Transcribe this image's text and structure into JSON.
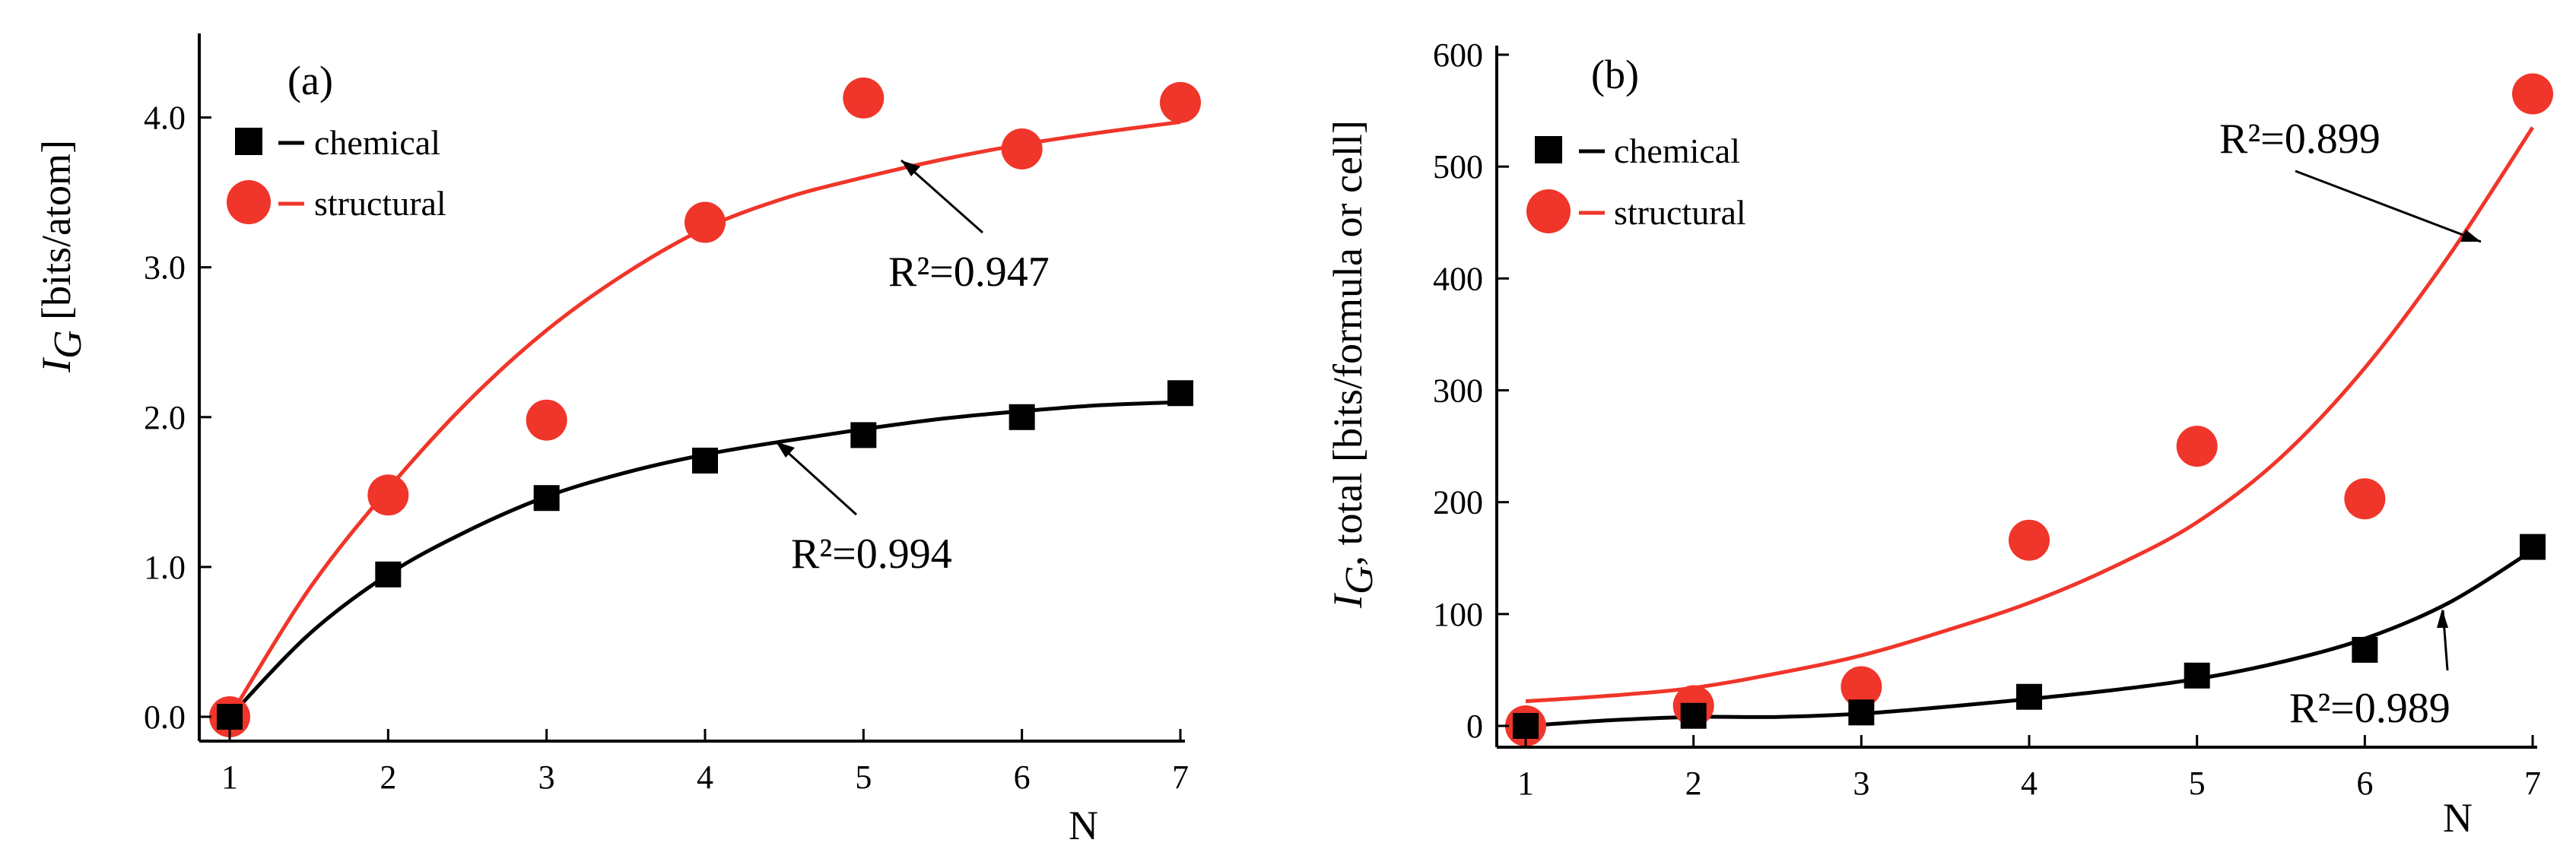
{
  "chart_data": [
    {
      "panel": "(a)",
      "type": "scatter",
      "xlabel": "N",
      "ylabel": {
        "italic": "I",
        "sub": "G",
        "rest": " [bits/atom]"
      },
      "xlim": [
        1,
        7
      ],
      "ylim": [
        0,
        4.5
      ],
      "xticks": [
        1,
        2,
        3,
        4,
        5,
        6,
        7
      ],
      "yticks": [
        0.0,
        1.0,
        2.0,
        3.0,
        4.0
      ],
      "ytick_labels": [
        "0.0",
        "1.0",
        "2.0",
        "3.0",
        "4.0"
      ],
      "legend_position": "top-left",
      "series": [
        {
          "name": "chemical",
          "marker": "square",
          "color": "#000000",
          "x": [
            1,
            2,
            3,
            4,
            5,
            6,
            7
          ],
          "y": [
            0.0,
            0.95,
            1.46,
            1.71,
            1.88,
            2.0,
            2.16
          ],
          "fit": [
            [
              1,
              0.0
            ],
            [
              1.5,
              0.55
            ],
            [
              2,
              0.95
            ],
            [
              2.5,
              1.24
            ],
            [
              3,
              1.47
            ],
            [
              3.5,
              1.63
            ],
            [
              4,
              1.75
            ],
            [
              4.5,
              1.84
            ],
            [
              5,
              1.92
            ],
            [
              5.5,
              1.99
            ],
            [
              6,
              2.04
            ],
            [
              6.5,
              2.08
            ],
            [
              7,
              2.1
            ]
          ],
          "r2_label": "R²=0.994"
        },
        {
          "name": "structural",
          "marker": "circle",
          "color": "#f0352a",
          "x": [
            1,
            2,
            3,
            4,
            5,
            6,
            7
          ],
          "y": [
            0.0,
            1.48,
            1.98,
            3.3,
            4.13,
            3.79,
            4.1
          ],
          "fit": [
            [
              1,
              0.0
            ],
            [
              1.5,
              0.85
            ],
            [
              2,
              1.52
            ],
            [
              2.5,
              2.1
            ],
            [
              3,
              2.58
            ],
            [
              3.5,
              2.96
            ],
            [
              4,
              3.26
            ],
            [
              4.5,
              3.46
            ],
            [
              5,
              3.6
            ],
            [
              5.5,
              3.72
            ],
            [
              6,
              3.82
            ],
            [
              6.5,
              3.9
            ],
            [
              7,
              3.97
            ]
          ],
          "r2_label": "R²=0.947"
        }
      ]
    },
    {
      "panel": "(b)",
      "type": "scatter",
      "xlabel": "N",
      "ylabel": {
        "italic": "I",
        "sub": "G",
        "rest": ", total [bits/formula or cell]"
      },
      "xlim": [
        1,
        7
      ],
      "ylim": [
        0,
        600
      ],
      "xticks": [
        1,
        2,
        3,
        4,
        5,
        6,
        7
      ],
      "yticks": [
        0,
        100,
        200,
        300,
        400,
        500,
        600
      ],
      "ytick_labels": [
        "0",
        "100",
        "200",
        "300",
        "400",
        "500",
        "600"
      ],
      "legend_position": "top-left",
      "series": [
        {
          "name": "chemical",
          "marker": "square",
          "color": "#000000",
          "x": [
            1,
            2,
            3,
            4,
            5,
            6,
            7
          ],
          "y": [
            0,
            9,
            12,
            26,
            45,
            68,
            160
          ],
          "fit": [
            [
              1,
              0
            ],
            [
              1.5,
              5
            ],
            [
              2,
              8
            ],
            [
              2.5,
              8
            ],
            [
              3,
              11
            ],
            [
              3.5,
              17
            ],
            [
              4,
              24
            ],
            [
              4.5,
              32
            ],
            [
              5,
              42
            ],
            [
              5.5,
              57
            ],
            [
              6,
              78
            ],
            [
              6.5,
              110
            ],
            [
              7,
              157
            ]
          ],
          "r2_label": "R²=0.989"
        },
        {
          "name": "structural",
          "marker": "circle",
          "color": "#f0352a",
          "x": [
            1,
            2,
            3,
            4,
            5,
            6,
            7
          ],
          "y": [
            0,
            18,
            35,
            166,
            250,
            203,
            565
          ],
          "fit": [
            [
              1,
              22
            ],
            [
              1.5,
              27
            ],
            [
              2,
              34
            ],
            [
              2.5,
              47
            ],
            [
              3,
              63
            ],
            [
              3.5,
              85
            ],
            [
              4,
              110
            ],
            [
              4.5,
              142
            ],
            [
              5,
              182
            ],
            [
              5.5,
              240
            ],
            [
              6,
              320
            ],
            [
              6.5,
              420
            ],
            [
              7,
              535
            ]
          ],
          "r2_label": "R²=0.899"
        }
      ]
    }
  ]
}
